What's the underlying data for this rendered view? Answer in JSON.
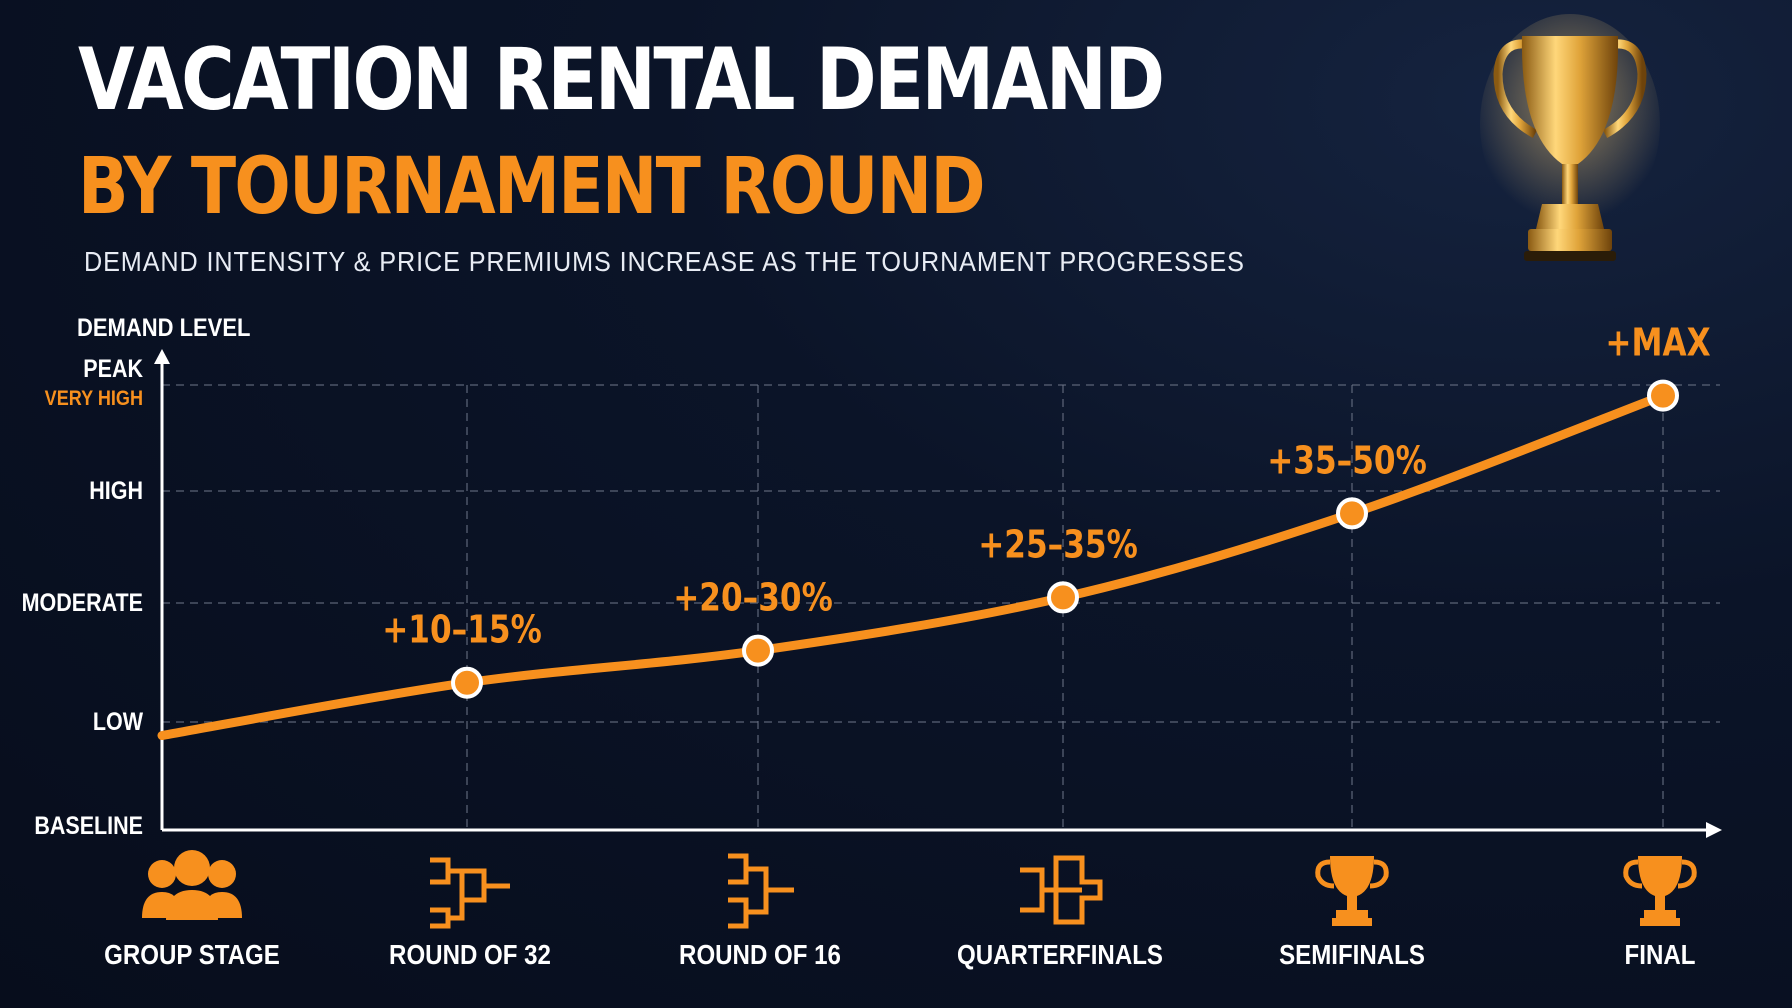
{
  "header": {
    "title_line1": "VACATION RENTAL DEMAND",
    "title_line2": "BY TOURNAMENT ROUND",
    "subtitle": "DEMAND INTENSITY & PRICE PREMIUMS INCREASE AS THE TOURNAMENT PROGRESSES"
  },
  "colors": {
    "accent": "#f7901e",
    "background": "#0b1428",
    "text": "#ffffff",
    "grid": "#6b7385",
    "trophy_gold": "#e0a43a"
  },
  "chart_data": {
    "type": "line",
    "title": "VACATION RENTAL DEMAND BY TOURNAMENT ROUND",
    "subtitle": "DEMAND INTENSITY & PRICE PREMIUMS INCREASE AS THE TOURNAMENT PROGRESSES",
    "ylabel": "DEMAND LEVEL",
    "xlabel": "",
    "y_levels": [
      {
        "label": "BASELINE",
        "value": 0
      },
      {
        "label": "LOW",
        "value": 1
      },
      {
        "label": "MODERATE",
        "value": 2
      },
      {
        "label": "HIGH",
        "value": 3
      },
      {
        "label": "PEAK",
        "sublabel": "VERY HIGH",
        "value": 4
      }
    ],
    "ylim": [
      0,
      4
    ],
    "categories": [
      "GROUP STAGE",
      "ROUND OF 32",
      "ROUND OF 16",
      "QUARTERFINALS",
      "SEMIFINALS",
      "FINAL"
    ],
    "category_icons": [
      "people-group-icon",
      "bracket-icon",
      "bracket-icon",
      "bracket-icon",
      "trophy-icon",
      "trophy-icon"
    ],
    "series": [
      {
        "values": [
          0.87,
          1.33,
          1.6,
          2.05,
          2.8,
          3.9
        ],
        "point_labels": [
          "",
          "+10–15%",
          "+20–30%",
          "+25–35%",
          "+35–50%",
          "+MAX"
        ],
        "markers": [
          false,
          true,
          true,
          true,
          true,
          true
        ]
      }
    ],
    "grid": true,
    "grid_style": "dashed",
    "legend": "none"
  }
}
